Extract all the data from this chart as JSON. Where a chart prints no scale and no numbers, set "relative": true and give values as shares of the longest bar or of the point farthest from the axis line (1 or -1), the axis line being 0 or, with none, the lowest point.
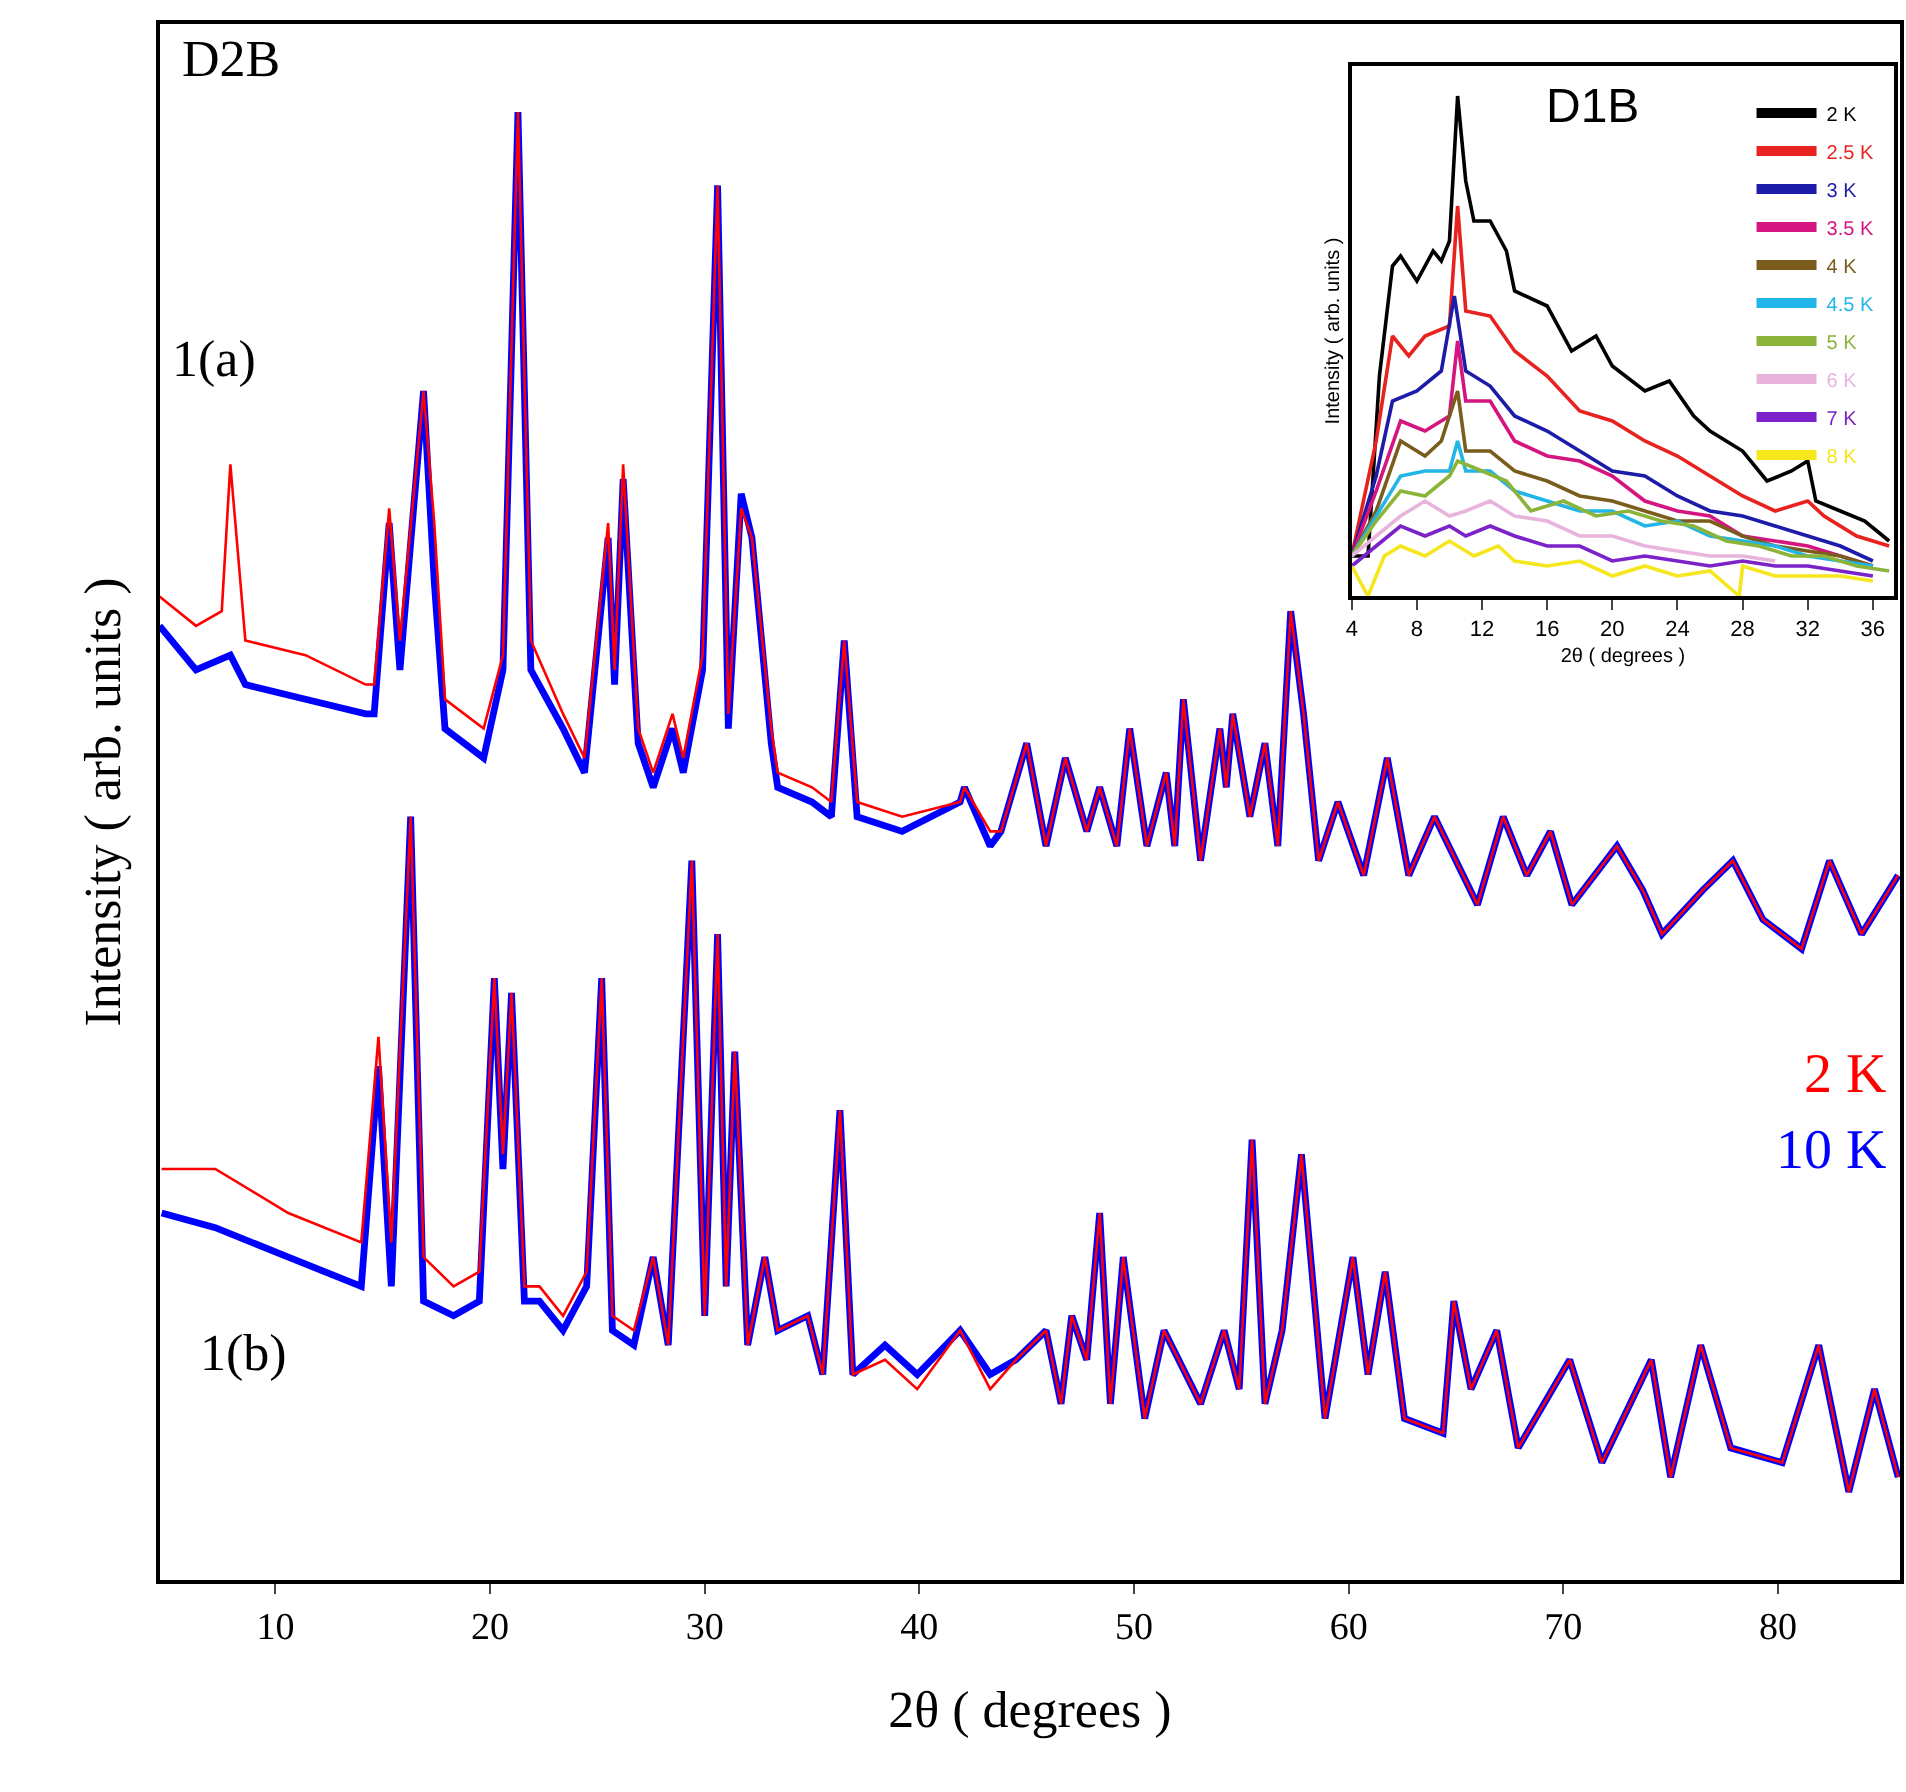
{
  "chart_data": [
    {
      "type": "line",
      "relative": true,
      "xlabel": "2θ ( degrees )",
      "ylabel": "Intensity ( arb. units )",
      "annotations": [
        "D2B",
        "1(a)",
        "1(b)"
      ],
      "xlim": [
        4.6,
        85.7
      ],
      "xticks": [
        10,
        20,
        30,
        40,
        50,
        60,
        70,
        80
      ],
      "series": [
        {
          "color": "#ff0000",
          "x": [
            4.6,
            6.3,
            7.5,
            7.9,
            8.6,
            11.4,
            14.2,
            14.6,
            15.3,
            15.8,
            16.9,
            17.4,
            17.9,
            19.7,
            20.6,
            21.3,
            21.9,
            23.4,
            24.4,
            25.5,
            25.8,
            26.2,
            26.9,
            27.6,
            28.5,
            29.0,
            29.9,
            30.6,
            31.1,
            31.7,
            32.2,
            33.1,
            33.4,
            35.0,
            35.9,
            36.5,
            37.1,
            39.2,
            41.9,
            42.1,
            43.3,
            43.8,
            45.0,
            45.9,
            46.8,
            47.8,
            48.4,
            49.2,
            49.8,
            50.6,
            51.5,
            51.9,
            52.3,
            53.1,
            54.0,
            54.3,
            54.6,
            55.4,
            56.1,
            56.7,
            57.3,
            57.9,
            58.6,
            59.5,
            60.7,
            61.8,
            62.8,
            64.0,
            66.0,
            67.2,
            68.3,
            69.4,
            70.4,
            72.5,
            73.7,
            74.6,
            76.5,
            77.9,
            79.3,
            81.1,
            82.4,
            83.9,
            85.6
          ],
          "values": [
            0.67,
            0.65,
            0.66,
            0.76,
            0.64,
            0.63,
            0.61,
            0.61,
            0.73,
            0.64,
            0.81,
            0.72,
            0.6,
            0.58,
            0.63,
            1.0,
            0.64,
            0.59,
            0.56,
            0.72,
            0.62,
            0.76,
            0.58,
            0.55,
            0.59,
            0.56,
            0.63,
            0.95,
            0.59,
            0.73,
            0.71,
            0.58,
            0.55,
            0.54,
            0.53,
            0.64,
            0.53,
            0.52,
            0.53,
            0.54,
            0.51,
            0.51,
            0.57,
            0.5,
            0.56,
            0.51,
            0.54,
            0.5,
            0.58,
            0.5,
            0.55,
            0.5,
            0.6,
            0.49,
            0.58,
            0.54,
            0.59,
            0.52,
            0.57,
            0.5,
            0.66,
            0.59,
            0.49,
            0.53,
            0.48,
            0.56,
            0.48,
            0.52,
            0.46,
            0.52,
            0.48,
            0.51,
            0.46,
            0.5,
            0.47,
            0.44,
            0.47,
            0.49,
            0.45,
            0.43,
            0.49,
            0.44,
            0.48
          ]
        },
        {
          "color": "#0000ff",
          "x": [
            4.6,
            6.3,
            7.9,
            8.6,
            11.4,
            14.2,
            14.6,
            15.3,
            15.8,
            16.9,
            17.4,
            17.9,
            19.7,
            20.6,
            21.3,
            21.9,
            23.4,
            24.4,
            25.5,
            25.8,
            26.2,
            26.9,
            27.6,
            28.5,
            29.0,
            29.9,
            30.6,
            31.1,
            31.7,
            32.2,
            33.1,
            33.4,
            35.0,
            35.9,
            36.5,
            37.1,
            39.2,
            41.9,
            42.1,
            43.3,
            43.8,
            45.0,
            45.9,
            46.8,
            47.8,
            48.4,
            49.2,
            49.8,
            50.6,
            51.5,
            51.9,
            52.3,
            53.1,
            54.0,
            54.3,
            54.6,
            55.4,
            56.1,
            56.7,
            57.3,
            57.9,
            58.6,
            59.5,
            60.7,
            61.8,
            62.8,
            64.0,
            66.0,
            67.2,
            68.3,
            69.4,
            70.4,
            72.5,
            73.7,
            74.6,
            76.5,
            77.9,
            79.3,
            81.1,
            82.4,
            83.9,
            85.6
          ],
          "values": [
            0.65,
            0.62,
            0.63,
            0.61,
            0.6,
            0.59,
            0.59,
            0.72,
            0.62,
            0.81,
            0.68,
            0.58,
            0.56,
            0.62,
            1.0,
            0.62,
            0.58,
            0.55,
            0.71,
            0.61,
            0.75,
            0.57,
            0.54,
            0.58,
            0.55,
            0.62,
            0.95,
            0.58,
            0.74,
            0.71,
            0.57,
            0.54,
            0.53,
            0.52,
            0.64,
            0.52,
            0.51,
            0.53,
            0.54,
            0.5,
            0.51,
            0.57,
            0.5,
            0.56,
            0.51,
            0.54,
            0.5,
            0.58,
            0.5,
            0.55,
            0.5,
            0.6,
            0.49,
            0.58,
            0.54,
            0.59,
            0.52,
            0.57,
            0.5,
            0.66,
            0.59,
            0.49,
            0.53,
            0.48,
            0.56,
            0.48,
            0.52,
            0.46,
            0.52,
            0.48,
            0.51,
            0.46,
            0.5,
            0.47,
            0.44,
            0.47,
            0.49,
            0.45,
            0.43,
            0.49,
            0.44,
            0.48
          ]
        },
        {
          "name": "2 K",
          "color": "#ff0000",
          "x": [
            4.7,
            7.2,
            10.6,
            14.0,
            14.8,
            15.4,
            16.3,
            16.9,
            18.3,
            19.5,
            20.2,
            20.6,
            21.0,
            21.6,
            22.3,
            23.4,
            24.5,
            25.2,
            25.7,
            26.7,
            27.6,
            28.3,
            29.4,
            30.0,
            30.6,
            31.0,
            31.4,
            32.0,
            32.8,
            33.4,
            34.8,
            35.5,
            36.3,
            36.9,
            38.4,
            39.9,
            41.9,
            43.3,
            44.5,
            45.9,
            46.6,
            47.1,
            47.8,
            48.4,
            48.9,
            49.5,
            50.5,
            51.4,
            53.1,
            54.2,
            54.9,
            55.5,
            56.1,
            56.9,
            57.8,
            58.9,
            60.2,
            60.9,
            61.7,
            62.6,
            64.4,
            64.9,
            65.7,
            66.9,
            67.9,
            70.3,
            71.8,
            74.1,
            75.0,
            76.4,
            77.8,
            80.2,
            81.9,
            83.3,
            84.5,
            85.6
          ],
          "values": [
            0.28,
            0.28,
            0.25,
            0.23,
            0.37,
            0.23,
            0.52,
            0.22,
            0.2,
            0.21,
            0.41,
            0.29,
            0.4,
            0.2,
            0.2,
            0.18,
            0.21,
            0.41,
            0.18,
            0.17,
            0.22,
            0.16,
            0.49,
            0.18,
            0.44,
            0.2,
            0.36,
            0.16,
            0.22,
            0.17,
            0.18,
            0.14,
            0.32,
            0.14,
            0.15,
            0.13,
            0.17,
            0.13,
            0.15,
            0.17,
            0.12,
            0.18,
            0.15,
            0.25,
            0.12,
            0.22,
            0.11,
            0.17,
            0.12,
            0.17,
            0.13,
            0.3,
            0.12,
            0.17,
            0.29,
            0.11,
            0.22,
            0.14,
            0.21,
            0.11,
            0.1,
            0.19,
            0.13,
            0.17,
            0.09,
            0.15,
            0.08,
            0.15,
            0.07,
            0.16,
            0.09,
            0.08,
            0.16,
            0.06,
            0.13,
            0.07
          ]
        },
        {
          "name": "10 K",
          "color": "#0000ff",
          "x": [
            4.7,
            7.2,
            10.6,
            14.0,
            14.8,
            15.4,
            16.3,
            16.9,
            18.3,
            19.5,
            20.2,
            20.6,
            21.0,
            21.6,
            22.3,
            23.4,
            24.5,
            25.2,
            25.7,
            26.7,
            27.6,
            28.3,
            29.4,
            30.0,
            30.6,
            31.0,
            31.4,
            32.0,
            32.8,
            33.4,
            34.8,
            35.5,
            36.3,
            36.9,
            38.4,
            39.9,
            41.9,
            43.3,
            44.5,
            45.9,
            46.6,
            47.1,
            47.8,
            48.4,
            48.9,
            49.5,
            50.5,
            51.4,
            53.1,
            54.2,
            54.9,
            55.5,
            56.1,
            56.9,
            57.8,
            58.9,
            60.2,
            60.9,
            61.7,
            62.6,
            64.4,
            64.9,
            65.7,
            66.9,
            67.9,
            70.3,
            71.8,
            74.1,
            75.0,
            76.4,
            77.8,
            80.2,
            81.9,
            83.3,
            84.5,
            85.6
          ],
          "values": [
            0.25,
            0.24,
            0.22,
            0.2,
            0.35,
            0.2,
            0.52,
            0.19,
            0.18,
            0.19,
            0.41,
            0.28,
            0.4,
            0.19,
            0.19,
            0.17,
            0.2,
            0.41,
            0.17,
            0.16,
            0.22,
            0.16,
            0.49,
            0.18,
            0.44,
            0.2,
            0.36,
            0.16,
            0.22,
            0.17,
            0.18,
            0.14,
            0.32,
            0.14,
            0.16,
            0.14,
            0.17,
            0.14,
            0.15,
            0.17,
            0.12,
            0.18,
            0.15,
            0.25,
            0.12,
            0.22,
            0.11,
            0.17,
            0.12,
            0.17,
            0.13,
            0.3,
            0.12,
            0.17,
            0.29,
            0.11,
            0.22,
            0.14,
            0.21,
            0.11,
            0.1,
            0.19,
            0.13,
            0.17,
            0.09,
            0.15,
            0.08,
            0.15,
            0.07,
            0.16,
            0.09,
            0.08,
            0.16,
            0.06,
            0.13,
            0.07
          ]
        }
      ]
    },
    {
      "type": "line",
      "relative": true,
      "xlabel": "2θ ( degrees )",
      "ylabel": "Intensity ( arb. units )",
      "annotations": [
        "D1B"
      ],
      "legend": "top right",
      "xlim": [
        4,
        37.3
      ],
      "xticks": [
        4,
        8,
        12,
        16,
        20,
        24,
        28,
        32,
        36
      ],
      "series": [
        {
          "name": "2 K",
          "color": "#000000",
          "x": [
            4,
            5,
            5.7,
            6.5,
            7,
            8,
            9,
            9.5,
            10,
            10.5,
            11,
            11.5,
            12.5,
            13.5,
            14,
            16,
            17.5,
            19,
            20,
            22,
            23.5,
            25,
            26,
            28,
            29.5,
            31,
            32,
            32.5,
            34,
            35.5,
            37
          ],
          "values": [
            0.08,
            0.08,
            0.44,
            0.66,
            0.68,
            0.63,
            0.69,
            0.67,
            0.71,
            1.0,
            0.83,
            0.75,
            0.75,
            0.69,
            0.61,
            0.58,
            0.49,
            0.52,
            0.46,
            0.41,
            0.43,
            0.36,
            0.33,
            0.29,
            0.23,
            0.25,
            0.27,
            0.19,
            0.17,
            0.15,
            0.11
          ]
        },
        {
          "name": "2.5 K",
          "color": "#e8231f",
          "x": [
            4,
            5.5,
            6.5,
            7.5,
            8.5,
            10,
            10.5,
            11,
            12.5,
            14,
            16,
            18,
            20,
            22,
            24,
            26,
            28,
            30,
            32,
            33,
            35,
            37
          ],
          "values": [
            0.08,
            0.31,
            0.52,
            0.48,
            0.52,
            0.54,
            0.78,
            0.57,
            0.56,
            0.49,
            0.44,
            0.37,
            0.35,
            0.31,
            0.28,
            0.24,
            0.2,
            0.17,
            0.19,
            0.16,
            0.12,
            0.1
          ]
        },
        {
          "name": "3 K",
          "color": "#1c1ca8",
          "x": [
            4,
            5.5,
            6.5,
            8,
            9.5,
            10.3,
            11,
            12.5,
            14,
            16,
            18,
            20,
            22,
            24,
            26,
            28,
            30,
            32,
            34,
            36
          ],
          "values": [
            0.08,
            0.24,
            0.39,
            0.41,
            0.45,
            0.6,
            0.45,
            0.42,
            0.36,
            0.33,
            0.29,
            0.25,
            0.24,
            0.2,
            0.17,
            0.16,
            0.14,
            0.12,
            0.1,
            0.07
          ]
        },
        {
          "name": "3.5 K",
          "color": "#d4157f",
          "x": [
            4,
            5.5,
            7,
            8.5,
            10,
            10.5,
            11,
            12.5,
            14,
            16,
            18,
            20,
            22,
            24,
            26,
            28,
            30,
            32,
            34,
            36
          ],
          "values": [
            0.08,
            0.21,
            0.35,
            0.33,
            0.36,
            0.51,
            0.39,
            0.39,
            0.31,
            0.28,
            0.27,
            0.24,
            0.19,
            0.17,
            0.16,
            0.12,
            0.11,
            0.1,
            0.08,
            0.06
          ]
        },
        {
          "name": "4 K",
          "color": "#7a5c1c",
          "x": [
            4,
            5.5,
            7,
            8.5,
            9.5,
            10.5,
            11,
            12.5,
            14,
            16,
            18,
            20,
            22,
            24,
            26,
            28,
            30,
            32,
            34,
            36
          ],
          "values": [
            0.08,
            0.17,
            0.31,
            0.28,
            0.31,
            0.41,
            0.29,
            0.29,
            0.25,
            0.23,
            0.2,
            0.19,
            0.17,
            0.15,
            0.15,
            0.12,
            0.1,
            0.09,
            0.08,
            0.06
          ]
        },
        {
          "name": "4.5 K",
          "color": "#22b5e8",
          "x": [
            4,
            5.5,
            7,
            8.5,
            10,
            10.5,
            11,
            12.5,
            14,
            16,
            18,
            20,
            22,
            24,
            26,
            28,
            30,
            32,
            34,
            36
          ],
          "values": [
            0.08,
            0.16,
            0.24,
            0.25,
            0.25,
            0.31,
            0.25,
            0.25,
            0.21,
            0.19,
            0.17,
            0.17,
            0.14,
            0.15,
            0.12,
            0.11,
            0.1,
            0.08,
            0.07,
            0.06
          ]
        },
        {
          "name": "5 K",
          "color": "#8cb43a",
          "x": [
            4,
            5.5,
            7,
            8.5,
            10,
            10.5,
            12,
            13.5,
            15,
            17,
            19,
            21,
            23,
            25,
            27,
            29,
            31,
            33,
            35,
            37
          ],
          "values": [
            0.08,
            0.15,
            0.21,
            0.2,
            0.24,
            0.27,
            0.25,
            0.23,
            0.17,
            0.19,
            0.16,
            0.17,
            0.15,
            0.14,
            0.11,
            0.1,
            0.08,
            0.08,
            0.06,
            0.05
          ]
        },
        {
          "name": "6 K",
          "color": "#e8b4dc",
          "x": [
            4,
            5.5,
            7,
            8.5,
            10,
            11,
            12.5,
            14,
            16,
            18,
            20,
            22,
            24,
            26,
            28,
            30
          ],
          "values": [
            0.08,
            0.12,
            0.16,
            0.19,
            0.16,
            0.17,
            0.19,
            0.16,
            0.15,
            0.12,
            0.12,
            0.1,
            0.09,
            0.08,
            0.08,
            0.07
          ]
        },
        {
          "name": "7 K",
          "color": "#7b22c8",
          "x": [
            4,
            5.5,
            7,
            8.5,
            10,
            11,
            12.5,
            14,
            16,
            18,
            20,
            22,
            24,
            26,
            28,
            30,
            32,
            34,
            36
          ],
          "values": [
            0.06,
            0.1,
            0.14,
            0.12,
            0.14,
            0.12,
            0.14,
            0.12,
            0.1,
            0.1,
            0.07,
            0.08,
            0.07,
            0.06,
            0.07,
            0.06,
            0.06,
            0.05,
            0.04
          ]
        },
        {
          "name": "8 K",
          "color": "#f5e61e",
          "x": [
            4,
            5,
            6,
            7,
            8.5,
            10,
            11.5,
            13,
            14,
            16,
            18,
            20,
            22,
            24,
            26,
            27.8,
            28,
            30,
            32,
            34,
            36
          ],
          "values": [
            0.06,
            0.0,
            0.08,
            0.1,
            0.08,
            0.11,
            0.08,
            0.1,
            0.07,
            0.06,
            0.07,
            0.04,
            0.06,
            0.04,
            0.05,
            0.0,
            0.06,
            0.04,
            0.04,
            0.04,
            0.03
          ]
        }
      ]
    }
  ]
}
